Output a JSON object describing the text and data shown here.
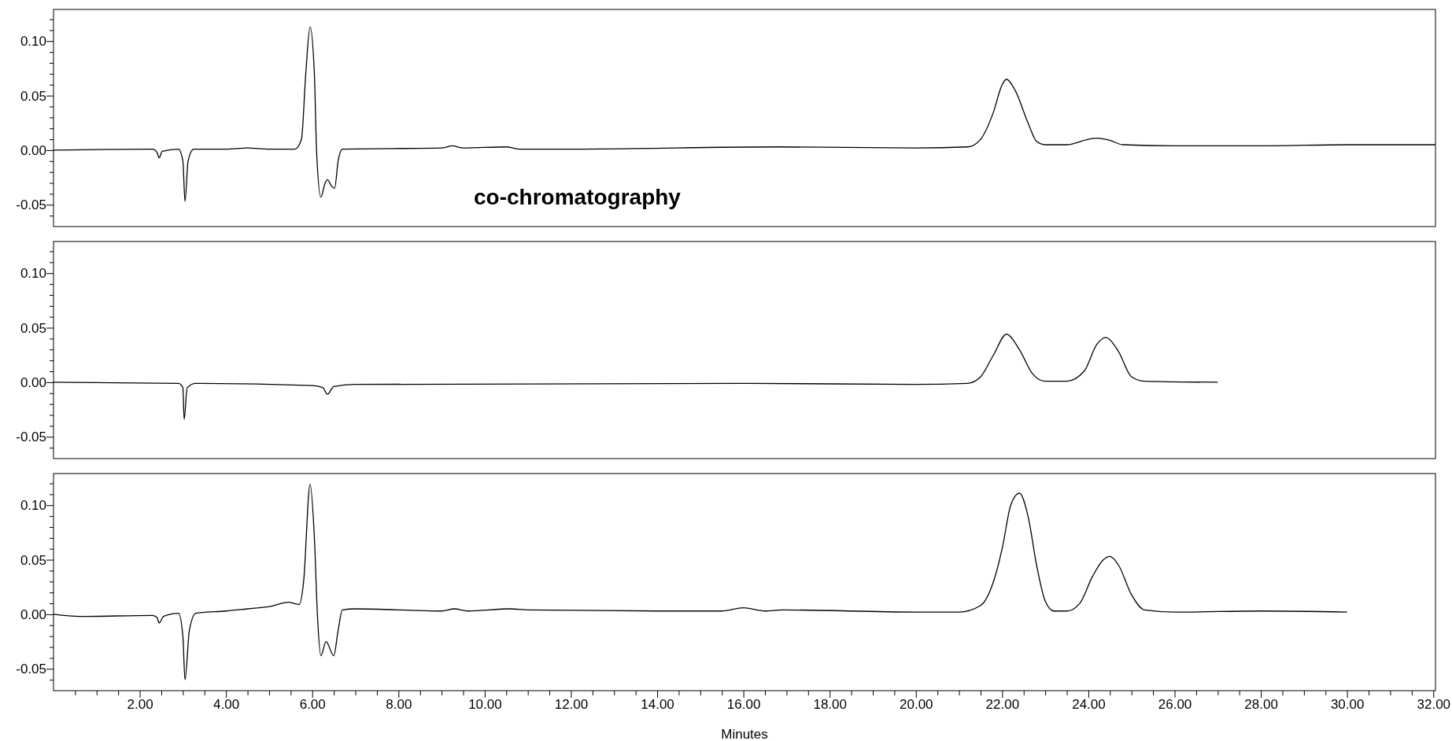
{
  "chart_data": [
    {
      "type": "line",
      "xlim": [
        0,
        32.05
      ],
      "ylim": [
        -0.07,
        0.129
      ],
      "tick_labels": "y",
      "annotations": [
        "co-chromatography"
      ],
      "yticks": [
        {
          "value": -0.06,
          "label": null
        },
        {
          "value": -0.05,
          "label": "-0.05"
        },
        {
          "value": -0.04,
          "label": null
        },
        {
          "value": -0.03,
          "label": null
        },
        {
          "value": -0.02,
          "label": null
        },
        {
          "value": -0.01,
          "label": null
        },
        {
          "value": 0,
          "label": "0.00"
        },
        {
          "value": 0.01,
          "label": null
        },
        {
          "value": 0.02,
          "label": null
        },
        {
          "value": 0.03,
          "label": null
        },
        {
          "value": 0.04,
          "label": null
        },
        {
          "value": 0.05,
          "label": "0.05"
        },
        {
          "value": 0.06,
          "label": null
        },
        {
          "value": 0.07,
          "label": null
        },
        {
          "value": 0.08,
          "label": null
        },
        {
          "value": 0.09,
          "label": null
        },
        {
          "value": 0.1,
          "label": "0.10"
        },
        {
          "value": 0.11,
          "label": null
        },
        {
          "value": 0.12,
          "label": null
        }
      ],
      "series": [
        {
          "color": "#000000",
          "x": [
            0,
            2.3,
            2.4,
            2.45,
            2.52,
            2.9,
            3.0,
            3.05,
            3.12,
            3.25,
            4.0,
            4.5,
            5.0,
            5.6,
            5.75,
            5.85,
            5.95,
            6.05,
            6.1,
            6.2,
            6.3,
            6.35,
            6.45,
            6.52,
            6.6,
            6.7,
            9.0,
            9.25,
            9.5,
            10.5,
            10.8,
            12,
            16.8,
            20,
            21.2,
            21.5,
            21.8,
            22.0,
            22.1,
            22.3,
            22.6,
            22.8,
            23.0,
            23.5,
            24.0,
            24.2,
            24.5,
            24.8,
            26,
            28,
            30,
            32.05
          ],
          "values": [
            0,
            0.001,
            -0.002,
            -0.007,
            -0.001,
            0.001,
            -0.01,
            -0.047,
            -0.01,
            0.001,
            0.001,
            0.002,
            0.001,
            0.001,
            0.01,
            0.07,
            0.113,
            0.07,
            0.0,
            -0.043,
            -0.03,
            -0.027,
            -0.033,
            -0.035,
            -0.01,
            0.001,
            0.002,
            0.004,
            0.002,
            0.003,
            0.001,
            0.001,
            0.003,
            0.002,
            0.003,
            0.01,
            0.035,
            0.06,
            0.065,
            0.055,
            0.025,
            0.008,
            0.005,
            0.005,
            0.01,
            0.011,
            0.009,
            0.005,
            0.004,
            0.004,
            0.005,
            0.005
          ]
        }
      ]
    },
    {
      "type": "line",
      "xlim": [
        0,
        32.05
      ],
      "ylim": [
        -0.07,
        0.129
      ],
      "tick_labels": "y",
      "yticks": [
        {
          "value": -0.06,
          "label": null
        },
        {
          "value": -0.05,
          "label": "-0.05"
        },
        {
          "value": -0.04,
          "label": null
        },
        {
          "value": -0.03,
          "label": null
        },
        {
          "value": -0.02,
          "label": null
        },
        {
          "value": -0.01,
          "label": null
        },
        {
          "value": 0,
          "label": "0.00"
        },
        {
          "value": 0.01,
          "label": null
        },
        {
          "value": 0.02,
          "label": null
        },
        {
          "value": 0.03,
          "label": null
        },
        {
          "value": 0.04,
          "label": null
        },
        {
          "value": 0.05,
          "label": "0.05"
        },
        {
          "value": 0.06,
          "label": null
        },
        {
          "value": 0.07,
          "label": null
        },
        {
          "value": 0.08,
          "label": null
        },
        {
          "value": 0.09,
          "label": null
        },
        {
          "value": 0.1,
          "label": "0.10"
        },
        {
          "value": 0.11,
          "label": null
        },
        {
          "value": 0.12,
          "label": null
        }
      ],
      "series": [
        {
          "color": "#000000",
          "x": [
            0,
            2.9,
            3.0,
            3.03,
            3.1,
            3.3,
            6.0,
            6.25,
            6.35,
            6.5,
            7,
            16,
            20,
            21.2,
            21.5,
            21.8,
            22.1,
            22.4,
            22.7,
            23,
            23.5,
            23.9,
            24.2,
            24.4,
            24.7,
            25,
            25.3,
            27
          ],
          "values": [
            0,
            -0.001,
            -0.005,
            -0.034,
            -0.005,
            -0.001,
            -0.003,
            -0.005,
            -0.011,
            -0.004,
            -0.002,
            -0.001,
            -0.002,
            -0.001,
            0.005,
            0.025,
            0.044,
            0.03,
            0.008,
            0.001,
            0.001,
            0.01,
            0.035,
            0.041,
            0.028,
            0.005,
            0.001,
            0
          ]
        }
      ]
    },
    {
      "type": "line",
      "xlim": [
        0,
        32.05
      ],
      "ylim": [
        -0.07,
        0.129
      ],
      "xlabel": "Minutes",
      "xticks": [
        {
          "value": 0.5,
          "label": null
        },
        {
          "value": 1,
          "label": null
        },
        {
          "value": 1.5,
          "label": null
        },
        {
          "value": 2,
          "label": "2.00"
        },
        {
          "value": 2.5,
          "label": null
        },
        {
          "value": 3,
          "label": null
        },
        {
          "value": 3.5,
          "label": null
        },
        {
          "value": 4,
          "label": "4.00"
        },
        {
          "value": 4.5,
          "label": null
        },
        {
          "value": 5,
          "label": null
        },
        {
          "value": 5.5,
          "label": null
        },
        {
          "value": 6,
          "label": "6.00"
        },
        {
          "value": 6.5,
          "label": null
        },
        {
          "value": 7,
          "label": null
        },
        {
          "value": 7.5,
          "label": null
        },
        {
          "value": 8,
          "label": "8.00"
        },
        {
          "value": 8.5,
          "label": null
        },
        {
          "value": 9,
          "label": null
        },
        {
          "value": 9.5,
          "label": null
        },
        {
          "value": 10,
          "label": "10.00"
        },
        {
          "value": 10.5,
          "label": null
        },
        {
          "value": 11,
          "label": null
        },
        {
          "value": 11.5,
          "label": null
        },
        {
          "value": 12,
          "label": "12.00"
        },
        {
          "value": 12.5,
          "label": null
        },
        {
          "value": 13,
          "label": null
        },
        {
          "value": 13.5,
          "label": null
        },
        {
          "value": 14,
          "label": "14.00"
        },
        {
          "value": 14.5,
          "label": null
        },
        {
          "value": 15,
          "label": null
        },
        {
          "value": 15.5,
          "label": null
        },
        {
          "value": 16,
          "label": "16.00"
        },
        {
          "value": 16.5,
          "label": null
        },
        {
          "value": 17,
          "label": null
        },
        {
          "value": 17.5,
          "label": null
        },
        {
          "value": 18,
          "label": "18.00"
        },
        {
          "value": 18.5,
          "label": null
        },
        {
          "value": 19,
          "label": null
        },
        {
          "value": 19.5,
          "label": null
        },
        {
          "value": 20,
          "label": "20.00"
        },
        {
          "value": 20.5,
          "label": null
        },
        {
          "value": 21,
          "label": null
        },
        {
          "value": 21.5,
          "label": null
        },
        {
          "value": 22,
          "label": "22.00"
        },
        {
          "value": 22.5,
          "label": null
        },
        {
          "value": 23,
          "label": null
        },
        {
          "value": 23.5,
          "label": null
        },
        {
          "value": 24,
          "label": "24.00"
        },
        {
          "value": 24.5,
          "label": null
        },
        {
          "value": 25,
          "label": null
        },
        {
          "value": 25.5,
          "label": null
        },
        {
          "value": 26,
          "label": "26.00"
        },
        {
          "value": 26.5,
          "label": null
        },
        {
          "value": 27,
          "label": null
        },
        {
          "value": 27.5,
          "label": null
        },
        {
          "value": 28,
          "label": "28.00"
        },
        {
          "value": 28.5,
          "label": null
        },
        {
          "value": 29,
          "label": null
        },
        {
          "value": 29.5,
          "label": null
        },
        {
          "value": 30,
          "label": "30.00"
        },
        {
          "value": 30.5,
          "label": null
        },
        {
          "value": 31,
          "label": null
        },
        {
          "value": 31.5,
          "label": null
        },
        {
          "value": 32,
          "label": "32.00"
        }
      ],
      "yticks": [
        {
          "value": -0.06,
          "label": null
        },
        {
          "value": -0.05,
          "label": "-0.05"
        },
        {
          "value": -0.04,
          "label": null
        },
        {
          "value": -0.03,
          "label": null
        },
        {
          "value": -0.02,
          "label": null
        },
        {
          "value": -0.01,
          "label": null
        },
        {
          "value": 0,
          "label": "0.00"
        },
        {
          "value": 0.01,
          "label": null
        },
        {
          "value": 0.02,
          "label": null
        },
        {
          "value": 0.03,
          "label": null
        },
        {
          "value": 0.04,
          "label": null
        },
        {
          "value": 0.05,
          "label": "0.05"
        },
        {
          "value": 0.06,
          "label": null
        },
        {
          "value": 0.07,
          "label": null
        },
        {
          "value": 0.08,
          "label": null
        },
        {
          "value": 0.09,
          "label": null
        },
        {
          "value": 0.1,
          "label": "0.10"
        },
        {
          "value": 0.11,
          "label": null
        },
        {
          "value": 0.12,
          "label": null
        }
      ],
      "series": [
        {
          "color": "#000000",
          "x": [
            0,
            0.6,
            2.3,
            2.4,
            2.45,
            2.55,
            2.9,
            3.0,
            3.05,
            3.15,
            3.3,
            4.0,
            4.5,
            5.0,
            5.45,
            5.7,
            5.8,
            5.95,
            6.05,
            6.12,
            6.2,
            6.32,
            6.5,
            6.6,
            6.7,
            7,
            9.0,
            9.3,
            9.6,
            10.6,
            11,
            14,
            15.5,
            16,
            16.5,
            16.9,
            20,
            21,
            21.5,
            21.8,
            22.0,
            22.2,
            22.4,
            22.6,
            22.8,
            23.0,
            23.2,
            23.5,
            23.8,
            24.1,
            24.35,
            24.5,
            24.7,
            25.0,
            25.3,
            26,
            28,
            30
          ],
          "values": [
            0,
            -0.002,
            -0.001,
            -0.003,
            -0.008,
            -0.002,
            0.001,
            -0.02,
            -0.06,
            -0.015,
            0.001,
            0.003,
            0.005,
            0.007,
            0.011,
            0.009,
            0.03,
            0.119,
            0.07,
            0.0,
            -0.038,
            -0.025,
            -0.038,
            -0.015,
            0.004,
            0.005,
            0.003,
            0.005,
            0.003,
            0.005,
            0.004,
            0.003,
            0.003,
            0.006,
            0.003,
            0.004,
            0.002,
            0.002,
            0.008,
            0.03,
            0.06,
            0.1,
            0.111,
            0.09,
            0.045,
            0.012,
            0.003,
            0.003,
            0.01,
            0.035,
            0.05,
            0.053,
            0.045,
            0.018,
            0.004,
            0.002,
            0.003,
            0.002
          ]
        }
      ]
    }
  ]
}
